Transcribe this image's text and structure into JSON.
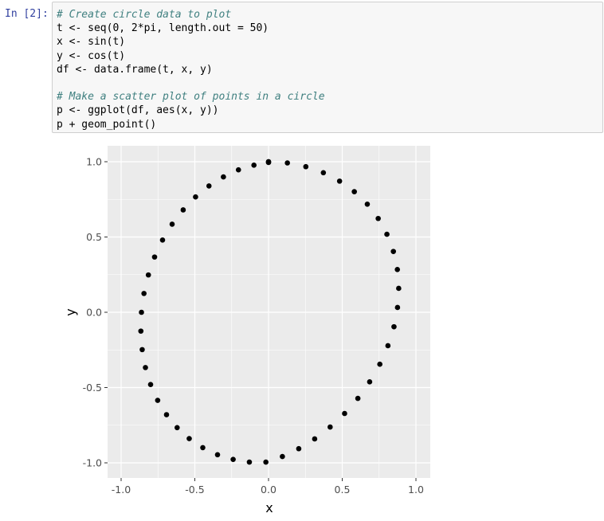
{
  "cell": {
    "prompt": "In [2]:",
    "lines": [
      {
        "text": "# Create circle data to plot",
        "kind": "comment"
      },
      {
        "text": "t <- seq(0, 2*pi, length.out = 50)",
        "kind": "code"
      },
      {
        "text": "x <- sin(t)",
        "kind": "code"
      },
      {
        "text": "y <- cos(t)",
        "kind": "code"
      },
      {
        "text": "df <- data.frame(t, x, y)",
        "kind": "code"
      },
      {
        "text": "",
        "kind": "code"
      },
      {
        "text": "# Make a scatter plot of points in a circle",
        "kind": "comment"
      },
      {
        "text": "p <- ggplot(df, aes(x, y))",
        "kind": "code"
      },
      {
        "text": "p + geom_point()",
        "kind": "code"
      }
    ]
  },
  "colors": {
    "panel_bg": "#ebebeb",
    "grid_major": "#ffffff",
    "point": "#000000",
    "axis_text": "#4d4d4d"
  },
  "chart_data": {
    "type": "scatter",
    "title": "",
    "xlabel": "x",
    "ylabel": "y",
    "xlim": [
      -1.0,
      1.0
    ],
    "ylim": [
      -1.0,
      1.0
    ],
    "xticks": [
      -1.0,
      -0.5,
      0.0,
      0.5,
      1.0
    ],
    "yticks": [
      -1.0,
      -0.5,
      0.0,
      0.5,
      1.0
    ],
    "xtick_labels": [
      "-1.0",
      "-0.5",
      "0.0",
      "0.5",
      "1.0"
    ],
    "ytick_labels": [
      "-1.0",
      "-0.5",
      "0.0",
      "0.5",
      "1.0"
    ],
    "grid": true,
    "series": [
      {
        "name": "points",
        "x": [
          0.0,
          0.128,
          0.253,
          0.372,
          0.482,
          0.582,
          0.67,
          0.744,
          0.803,
          0.847,
          0.874,
          0.883,
          0.875,
          0.851,
          0.81,
          0.755,
          0.686,
          0.606,
          0.516,
          0.418,
          0.313,
          0.205,
          0.094,
          -0.018,
          -0.13,
          -0.24,
          -0.346,
          -0.446,
          -0.538,
          -0.62,
          -0.692,
          -0.752,
          -0.8,
          -0.835,
          -0.857,
          -0.866,
          -0.862,
          -0.845,
          -0.815,
          -0.773,
          -0.719,
          -0.654,
          -0.579,
          -0.495,
          -0.404,
          -0.306,
          -0.204,
          -0.099,
          -0.0,
          0.0
        ],
        "y": [
          1.0,
          0.992,
          0.967,
          0.927,
          0.871,
          0.801,
          0.718,
          0.623,
          0.518,
          0.404,
          0.284,
          0.159,
          0.032,
          -0.096,
          -0.222,
          -0.345,
          -0.462,
          -0.572,
          -0.672,
          -0.762,
          -0.841,
          -0.906,
          -0.958,
          -0.995,
          -0.995,
          -0.977,
          -0.946,
          -0.899,
          -0.839,
          -0.766,
          -0.68,
          -0.585,
          -0.48,
          -0.367,
          -0.248,
          -0.125,
          0.0,
          0.125,
          0.248,
          0.367,
          0.48,
          0.585,
          0.68,
          0.766,
          0.839,
          0.899,
          0.946,
          0.977,
          0.995,
          1.0
        ]
      }
    ]
  }
}
